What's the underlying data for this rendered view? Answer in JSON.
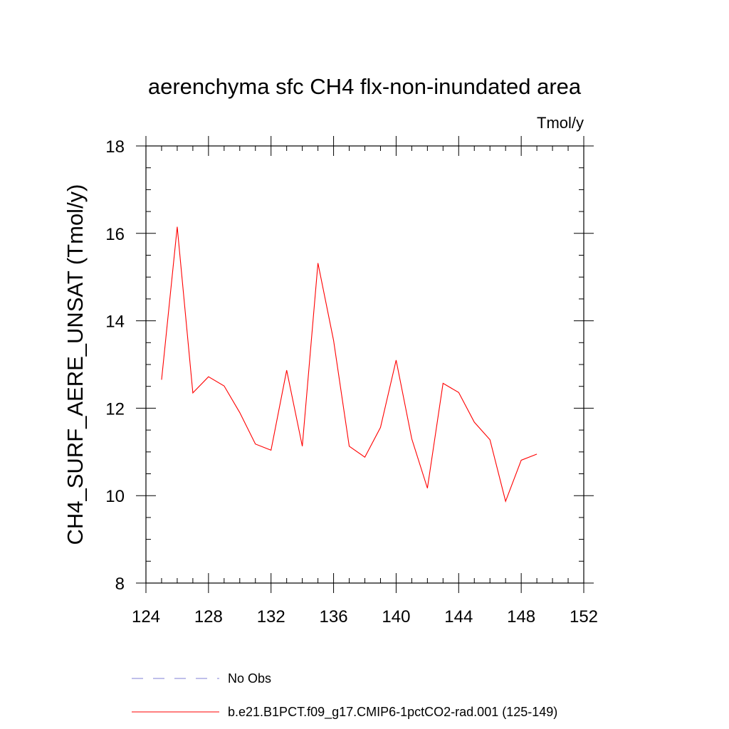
{
  "chart_data": {
    "type": "line",
    "title": "aerenchyma sfc CH4 flx-non-inundated area",
    "units": "Tmol/y",
    "xlabel": "",
    "ylabel": "CH4_SURF_AERE_UNSAT  (Tmol/y)",
    "xlim": [
      124,
      152
    ],
    "ylim": [
      8,
      18
    ],
    "x_ticks": [
      124,
      128,
      132,
      136,
      140,
      144,
      148,
      152
    ],
    "y_ticks": [
      8,
      10,
      12,
      14,
      16,
      18
    ],
    "x_ticks_labels": [
      "124",
      "128",
      "132",
      "136",
      "140",
      "144",
      "148",
      "152"
    ],
    "y_ticks_labels": [
      "8",
      "10",
      "12",
      "14",
      "16",
      "18"
    ],
    "x_minor_step": 1,
    "y_minor_step": 0.5,
    "series": [
      {
        "name": "b.e21.B1PCT.f09_g17.CMIP6-1pctCO2-rad.001 (125-149)",
        "color": "#ff0000",
        "x": [
          125,
          126,
          127,
          128,
          129,
          130,
          131,
          132,
          133,
          134,
          135,
          136,
          137,
          138,
          139,
          140,
          141,
          142,
          143,
          144,
          145,
          146,
          147,
          148,
          149
        ],
        "y": [
          12.65,
          16.15,
          12.35,
          12.72,
          12.51,
          11.9,
          11.18,
          11.04,
          12.87,
          11.13,
          15.32,
          13.55,
          11.13,
          10.88,
          11.56,
          13.1,
          11.3,
          10.17,
          12.57,
          12.36,
          11.68,
          11.28,
          9.87,
          10.81,
          10.95
        ]
      }
    ],
    "legend": {
      "placement": "bottom",
      "entries": [
        {
          "label": "No Obs",
          "style": "dashed",
          "color": "#7f7fd4"
        },
        {
          "label": "b.e21.B1PCT.f09_g17.CMIP6-1pctCO2-rad.001 (125-149)",
          "style": "solid",
          "color": "#ff0000"
        }
      ]
    }
  }
}
